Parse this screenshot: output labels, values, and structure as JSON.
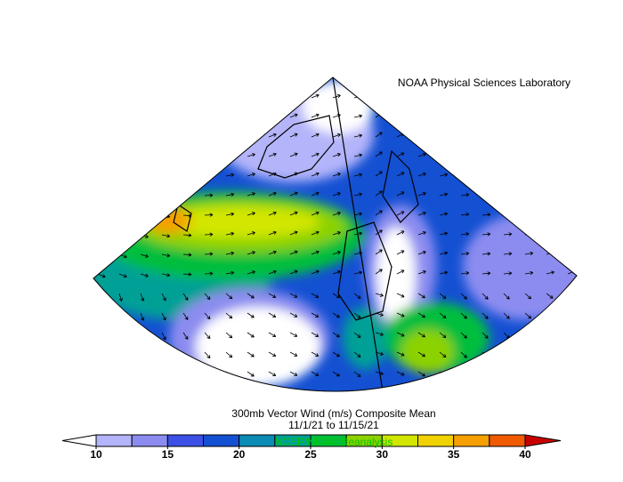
{
  "header": {
    "credit": "NOAA Physical Sciences Laboratory"
  },
  "caption": {
    "title": "300mb Vector Wind (m/s) Composite Mean",
    "dates": "11/1/21  to 11/15/21",
    "source": "NCEP/NCAR Reanalysis"
  },
  "colorbar": {
    "range": [
      10,
      40
    ],
    "ticks": [
      10,
      15,
      20,
      25,
      30,
      35,
      40
    ],
    "colors": [
      "#b4b4fa",
      "#8c8cf0",
      "#3c50e6",
      "#1450d2",
      "#0a8cb4",
      "#00a096",
      "#00be3c",
      "#8cd200",
      "#d2e600",
      "#f0d200",
      "#f5a000",
      "#f05a00"
    ],
    "under_color": "#ffffff",
    "over_color": "#c80000"
  }
}
